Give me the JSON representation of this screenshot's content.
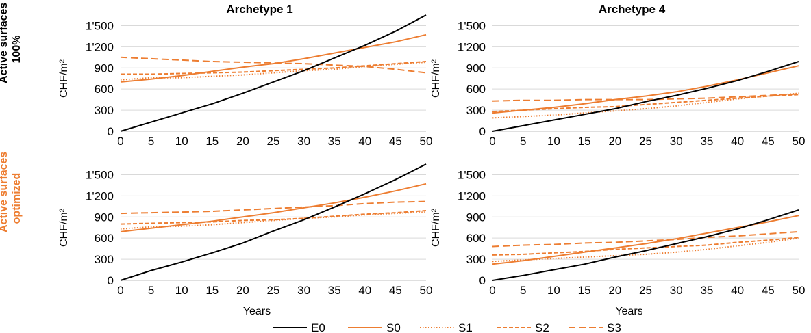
{
  "row_labels": [
    {
      "lines": [
        "Active surfaces",
        "100%"
      ],
      "color": "#000000"
    },
    {
      "lines": [
        "Active surfaces",
        "optimized"
      ],
      "color": "#ed7d31"
    }
  ],
  "y_axis_label": "CHF/m²",
  "x_axis_label": "Years",
  "colors": {
    "E0": "#000000",
    "S": "#ed7d31"
  },
  "legend": [
    {
      "name": "E0",
      "style": "solid",
      "color": "#000000"
    },
    {
      "name": "S0",
      "style": "solid",
      "color": "#ed7d31"
    },
    {
      "name": "S1",
      "style": "dotted",
      "color": "#ed7d31"
    },
    {
      "name": "S2",
      "style": "dashed",
      "color": "#ed7d31"
    },
    {
      "name": "S3",
      "style": "longdash",
      "color": "#ed7d31"
    }
  ],
  "chart_data": [
    {
      "type": "line",
      "title": "Archetype 1",
      "row": "Active surfaces 100%",
      "xlim": [
        0,
        50
      ],
      "ylim": [
        0,
        1650
      ],
      "xticks": [
        0,
        5,
        10,
        15,
        20,
        25,
        30,
        35,
        40,
        45,
        50
      ],
      "yticks": [
        0,
        300,
        600,
        900,
        1200,
        1500
      ],
      "ytick_labels": [
        "0",
        "300",
        "600",
        "900",
        "1'200",
        "1'500"
      ],
      "x": [
        0,
        5,
        10,
        15,
        20,
        25,
        30,
        35,
        40,
        45,
        50
      ],
      "series": [
        {
          "name": "E0",
          "values": [
            0,
            130,
            260,
            390,
            540,
            700,
            860,
            1040,
            1220,
            1420,
            1650
          ]
        },
        {
          "name": "S0",
          "values": [
            700,
            740,
            790,
            850,
            910,
            960,
            1030,
            1110,
            1190,
            1270,
            1370
          ]
        },
        {
          "name": "S1",
          "values": [
            730,
            760,
            760,
            780,
            800,
            830,
            860,
            880,
            920,
            950,
            980
          ]
        },
        {
          "name": "S2",
          "values": [
            810,
            810,
            820,
            830,
            840,
            860,
            880,
            900,
            930,
            960,
            990
          ]
        },
        {
          "name": "S3",
          "values": [
            1050,
            1030,
            1010,
            990,
            980,
            970,
            960,
            940,
            920,
            880,
            830
          ]
        }
      ]
    },
    {
      "type": "line",
      "title": "Archetype 4",
      "row": "Active surfaces 100%",
      "xlim": [
        0,
        50
      ],
      "ylim": [
        0,
        1650
      ],
      "xticks": [
        0,
        5,
        10,
        15,
        20,
        25,
        30,
        35,
        40,
        45,
        50
      ],
      "yticks": [
        0,
        300,
        600,
        900,
        1200,
        1500
      ],
      "ytick_labels": [
        "0",
        "300",
        "600",
        "900",
        "1'200",
        "1'500"
      ],
      "x": [
        0,
        5,
        10,
        15,
        20,
        25,
        30,
        35,
        40,
        45,
        50
      ],
      "series": [
        {
          "name": "E0",
          "values": [
            0,
            80,
            160,
            240,
            320,
            420,
            510,
            610,
            720,
            850,
            990
          ]
        },
        {
          "name": "S0",
          "values": [
            260,
            300,
            340,
            390,
            450,
            500,
            560,
            640,
            730,
            830,
            930
          ]
        },
        {
          "name": "S1",
          "values": [
            190,
            210,
            230,
            260,
            290,
            320,
            360,
            410,
            460,
            500,
            540
          ]
        },
        {
          "name": "S2",
          "values": [
            280,
            300,
            320,
            340,
            350,
            380,
            410,
            440,
            470,
            500,
            520
          ]
        },
        {
          "name": "S3",
          "values": [
            430,
            440,
            440,
            450,
            450,
            450,
            460,
            470,
            490,
            510,
            530
          ]
        }
      ]
    },
    {
      "type": "line",
      "title": "",
      "row": "Active surfaces optimized",
      "xlim": [
        0,
        50
      ],
      "ylim": [
        0,
        1650
      ],
      "xticks": [
        0,
        5,
        10,
        15,
        20,
        25,
        30,
        35,
        40,
        45,
        50
      ],
      "yticks": [
        0,
        300,
        600,
        900,
        1200,
        1500
      ],
      "ytick_labels": [
        "0",
        "300",
        "600",
        "900",
        "1'200",
        "1'500"
      ],
      "x": [
        0,
        5,
        10,
        15,
        20,
        25,
        30,
        35,
        40,
        45,
        50
      ],
      "series": [
        {
          "name": "E0",
          "values": [
            0,
            140,
            260,
            390,
            530,
            700,
            860,
            1040,
            1230,
            1430,
            1650
          ]
        },
        {
          "name": "S0",
          "values": [
            690,
            740,
            790,
            840,
            900,
            960,
            1030,
            1100,
            1180,
            1270,
            1370
          ]
        },
        {
          "name": "S1",
          "values": [
            730,
            760,
            770,
            790,
            820,
            850,
            880,
            900,
            930,
            950,
            970
          ]
        },
        {
          "name": "S2",
          "values": [
            800,
            810,
            820,
            830,
            850,
            860,
            880,
            910,
            940,
            960,
            990
          ]
        },
        {
          "name": "S3",
          "values": [
            950,
            960,
            970,
            980,
            1000,
            1020,
            1040,
            1060,
            1090,
            1110,
            1120
          ]
        }
      ]
    },
    {
      "type": "line",
      "title": "",
      "row": "Active surfaces optimized",
      "xlim": [
        0,
        50
      ],
      "ylim": [
        0,
        1650
      ],
      "xticks": [
        0,
        5,
        10,
        15,
        20,
        25,
        30,
        35,
        40,
        45,
        50
      ],
      "yticks": [
        0,
        300,
        600,
        900,
        1200,
        1500
      ],
      "ytick_labels": [
        "0",
        "300",
        "600",
        "900",
        "1'200",
        "1'500"
      ],
      "x": [
        0,
        5,
        10,
        15,
        20,
        25,
        30,
        35,
        40,
        45,
        50
      ],
      "series": [
        {
          "name": "E0",
          "values": [
            0,
            70,
            150,
            230,
            330,
            420,
            520,
            620,
            730,
            860,
            1000
          ]
        },
        {
          "name": "S0",
          "values": [
            230,
            280,
            340,
            400,
            460,
            520,
            590,
            670,
            750,
            830,
            920
          ]
        },
        {
          "name": "S1",
          "values": [
            270,
            290,
            310,
            330,
            350,
            370,
            400,
            440,
            490,
            540,
            600
          ]
        },
        {
          "name": "S2",
          "values": [
            360,
            370,
            390,
            410,
            440,
            460,
            480,
            500,
            540,
            570,
            610
          ]
        },
        {
          "name": "S3",
          "values": [
            480,
            500,
            510,
            530,
            540,
            560,
            580,
            610,
            630,
            660,
            690
          ]
        }
      ]
    }
  ]
}
